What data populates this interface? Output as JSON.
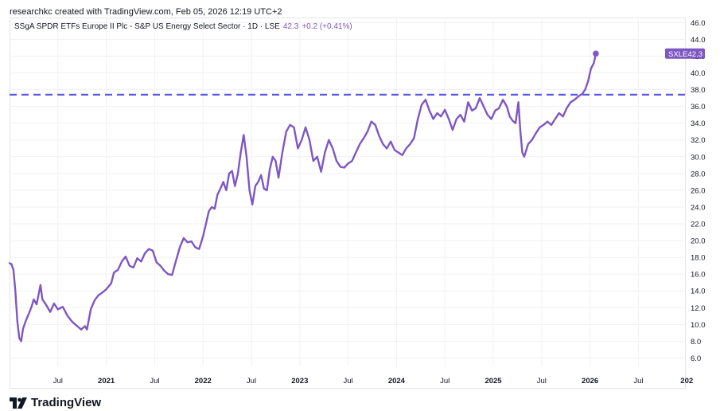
{
  "attribution": "researchkc created with TradingView.com, Feb 05, 2026 12:19 UTC+2",
  "legend": {
    "title": "SSgA SPDR ETFs Europe II Plc - S&P US Energy Select Sector · 1D · LSE",
    "last_value": "42.3",
    "change": "+0.2 (+0.41%)"
  },
  "brand": {
    "name": "TradingView"
  },
  "colors": {
    "line": "#7e57c2",
    "level_line": "#5b5ce6",
    "badge": "#7e57c2"
  },
  "chart_data": {
    "type": "line",
    "title": "SSgA SPDR ETFs Europe II Plc - S&P US Energy Select Sector",
    "symbol": "SXLE",
    "interval": "1D",
    "exchange": "LSE",
    "last_price": 42.3,
    "ylim": [
      5.0,
      46.6
    ],
    "xlim": [
      2020.0,
      2026.99
    ],
    "y_ticks": [
      "46.0",
      "44.0",
      "42.0",
      "40.0",
      "38.0",
      "36.0",
      "34.0",
      "32.0",
      "30.0",
      "28.0",
      "26.0",
      "24.0",
      "22.0",
      "20.0",
      "18.0",
      "16.0",
      "14.0",
      "12.0",
      "10.0",
      "8.0",
      "6.0"
    ],
    "x_ticks": [
      {
        "label": "Jul",
        "t": 2020.5,
        "major": false
      },
      {
        "label": "2021",
        "t": 2021.0,
        "major": true
      },
      {
        "label": "Jul",
        "t": 2021.5,
        "major": false
      },
      {
        "label": "2022",
        "t": 2022.0,
        "major": true
      },
      {
        "label": "Jul",
        "t": 2022.5,
        "major": false
      },
      {
        "label": "2023",
        "t": 2023.0,
        "major": true
      },
      {
        "label": "Jul",
        "t": 2023.5,
        "major": false
      },
      {
        "label": "2024",
        "t": 2024.0,
        "major": true
      },
      {
        "label": "Jul",
        "t": 2024.5,
        "major": false
      },
      {
        "label": "2025",
        "t": 2025.0,
        "major": true
      },
      {
        "label": "Jul",
        "t": 2025.5,
        "major": false
      },
      {
        "label": "2026",
        "t": 2026.0,
        "major": true
      },
      {
        "label": "Jul",
        "t": 2026.5,
        "major": false
      },
      {
        "label": "202",
        "t": 2027.0,
        "major": true
      }
    ],
    "horizontal_line": {
      "value": 37.4,
      "style": "dashed"
    },
    "series": [
      {
        "name": "SXLE",
        "points": [
          [
            2020.0,
            17.3
          ],
          [
            2020.02,
            17.2
          ],
          [
            2020.04,
            16.5
          ],
          [
            2020.06,
            14.0
          ],
          [
            2020.08,
            10.5
          ],
          [
            2020.1,
            8.4
          ],
          [
            2020.12,
            8.0
          ],
          [
            2020.14,
            9.5
          ],
          [
            2020.17,
            10.5
          ],
          [
            2020.2,
            11.3
          ],
          [
            2020.23,
            12.2
          ],
          [
            2020.25,
            13.0
          ],
          [
            2020.28,
            12.4
          ],
          [
            2020.32,
            14.7
          ],
          [
            2020.34,
            13.0
          ],
          [
            2020.38,
            12.3
          ],
          [
            2020.42,
            11.5
          ],
          [
            2020.46,
            12.5
          ],
          [
            2020.5,
            11.8
          ],
          [
            2020.55,
            12.1
          ],
          [
            2020.6,
            11.0
          ],
          [
            2020.65,
            10.3
          ],
          [
            2020.7,
            9.8
          ],
          [
            2020.74,
            9.4
          ],
          [
            2020.78,
            9.8
          ],
          [
            2020.8,
            9.4
          ],
          [
            2020.84,
            11.8
          ],
          [
            2020.88,
            12.9
          ],
          [
            2020.92,
            13.5
          ],
          [
            2020.96,
            13.8
          ],
          [
            2021.0,
            14.2
          ],
          [
            2021.05,
            14.9
          ],
          [
            2021.08,
            16.2
          ],
          [
            2021.12,
            16.5
          ],
          [
            2021.16,
            17.5
          ],
          [
            2021.2,
            18.1
          ],
          [
            2021.24,
            17.0
          ],
          [
            2021.28,
            16.8
          ],
          [
            2021.32,
            17.9
          ],
          [
            2021.36,
            17.5
          ],
          [
            2021.4,
            18.5
          ],
          [
            2021.44,
            19.0
          ],
          [
            2021.48,
            18.8
          ],
          [
            2021.52,
            17.4
          ],
          [
            2021.56,
            17.0
          ],
          [
            2021.6,
            16.4
          ],
          [
            2021.64,
            16.0
          ],
          [
            2021.68,
            15.9
          ],
          [
            2021.72,
            17.6
          ],
          [
            2021.76,
            19.2
          ],
          [
            2021.8,
            20.3
          ],
          [
            2021.84,
            19.8
          ],
          [
            2021.88,
            19.9
          ],
          [
            2021.92,
            19.2
          ],
          [
            2021.96,
            19.0
          ],
          [
            2022.0,
            20.5
          ],
          [
            2022.03,
            22.0
          ],
          [
            2022.06,
            23.5
          ],
          [
            2022.09,
            24.0
          ],
          [
            2022.12,
            23.8
          ],
          [
            2022.15,
            25.5
          ],
          [
            2022.18,
            26.2
          ],
          [
            2022.21,
            27.0
          ],
          [
            2022.24,
            26.0
          ],
          [
            2022.27,
            28.0
          ],
          [
            2022.3,
            28.3
          ],
          [
            2022.33,
            26.5
          ],
          [
            2022.36,
            28.0
          ],
          [
            2022.39,
            30.5
          ],
          [
            2022.42,
            32.6
          ],
          [
            2022.45,
            30.0
          ],
          [
            2022.48,
            26.0
          ],
          [
            2022.51,
            24.3
          ],
          [
            2022.54,
            26.5
          ],
          [
            2022.57,
            27.0
          ],
          [
            2022.6,
            27.8
          ],
          [
            2022.63,
            26.2
          ],
          [
            2022.66,
            26.0
          ],
          [
            2022.69,
            28.5
          ],
          [
            2022.72,
            30.0
          ],
          [
            2022.75,
            29.5
          ],
          [
            2022.78,
            27.5
          ],
          [
            2022.82,
            30.5
          ],
          [
            2022.86,
            33.0
          ],
          [
            2022.9,
            33.8
          ],
          [
            2022.94,
            33.5
          ],
          [
            2022.98,
            31.0
          ],
          [
            2023.02,
            32.0
          ],
          [
            2023.06,
            33.5
          ],
          [
            2023.1,
            32.0
          ],
          [
            2023.14,
            29.5
          ],
          [
            2023.18,
            30.0
          ],
          [
            2023.22,
            28.2
          ],
          [
            2023.26,
            30.5
          ],
          [
            2023.3,
            32.0
          ],
          [
            2023.34,
            31.0
          ],
          [
            2023.38,
            29.5
          ],
          [
            2023.42,
            28.8
          ],
          [
            2023.46,
            28.7
          ],
          [
            2023.5,
            29.2
          ],
          [
            2023.54,
            29.5
          ],
          [
            2023.58,
            30.5
          ],
          [
            2023.62,
            31.5
          ],
          [
            2023.66,
            32.2
          ],
          [
            2023.7,
            33.0
          ],
          [
            2023.74,
            34.2
          ],
          [
            2023.78,
            33.8
          ],
          [
            2023.82,
            32.5
          ],
          [
            2023.86,
            31.5
          ],
          [
            2023.9,
            31.0
          ],
          [
            2023.94,
            31.8
          ],
          [
            2023.98,
            30.8
          ],
          [
            2024.02,
            30.5
          ],
          [
            2024.06,
            30.2
          ],
          [
            2024.1,
            31.0
          ],
          [
            2024.14,
            31.5
          ],
          [
            2024.18,
            32.2
          ],
          [
            2024.22,
            34.5
          ],
          [
            2024.26,
            36.2
          ],
          [
            2024.3,
            36.8
          ],
          [
            2024.34,
            35.5
          ],
          [
            2024.38,
            34.5
          ],
          [
            2024.42,
            35.2
          ],
          [
            2024.46,
            34.8
          ],
          [
            2024.5,
            35.6
          ],
          [
            2024.54,
            34.5
          ],
          [
            2024.58,
            33.2
          ],
          [
            2024.62,
            34.5
          ],
          [
            2024.66,
            35.0
          ],
          [
            2024.7,
            34.2
          ],
          [
            2024.74,
            36.5
          ],
          [
            2024.78,
            35.5
          ],
          [
            2024.82,
            35.8
          ],
          [
            2024.86,
            37.0
          ],
          [
            2024.9,
            36.0
          ],
          [
            2024.94,
            35.0
          ],
          [
            2024.98,
            34.5
          ],
          [
            2025.02,
            35.5
          ],
          [
            2025.06,
            35.8
          ],
          [
            2025.1,
            36.8
          ],
          [
            2025.14,
            36.0
          ],
          [
            2025.17,
            34.8
          ],
          [
            2025.2,
            34.3
          ],
          [
            2025.23,
            34.0
          ],
          [
            2025.26,
            36.5
          ],
          [
            2025.28,
            33.0
          ],
          [
            2025.3,
            30.5
          ],
          [
            2025.32,
            30.0
          ],
          [
            2025.36,
            31.5
          ],
          [
            2025.4,
            32.0
          ],
          [
            2025.44,
            32.8
          ],
          [
            2025.48,
            33.5
          ],
          [
            2025.52,
            33.8
          ],
          [
            2025.56,
            34.2
          ],
          [
            2025.6,
            33.8
          ],
          [
            2025.64,
            34.5
          ],
          [
            2025.68,
            35.2
          ],
          [
            2025.72,
            34.8
          ],
          [
            2025.76,
            35.8
          ],
          [
            2025.8,
            36.5
          ],
          [
            2025.84,
            36.8
          ],
          [
            2025.88,
            37.2
          ],
          [
            2025.92,
            37.5
          ],
          [
            2025.95,
            38.0
          ],
          [
            2025.98,
            39.0
          ],
          [
            2026.01,
            40.5
          ],
          [
            2026.04,
            41.2
          ],
          [
            2026.06,
            42.3
          ]
        ]
      }
    ]
  }
}
